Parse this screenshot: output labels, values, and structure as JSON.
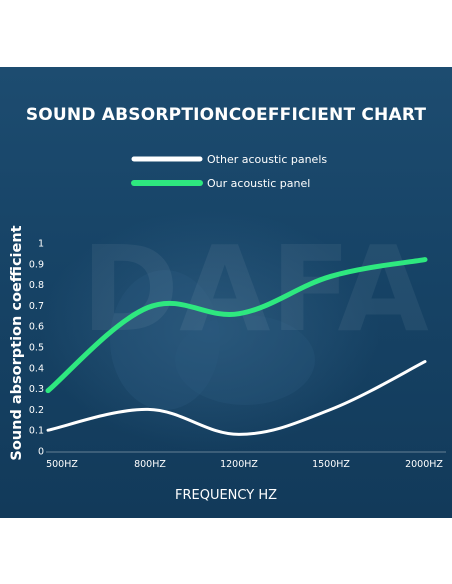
{
  "chart_data": {
    "type": "line",
    "title": "SOUND ABSORPTIONCOEFFICIENT CHART",
    "xlabel": "FREQUENCY HZ",
    "ylabel": "Sound absorption coefficient",
    "categories": [
      "500HZ",
      "800HZ",
      "1200HZ",
      "1500HZ",
      "2000HZ"
    ],
    "yticks": [
      "0",
      "0.1",
      "0.2",
      "0.3",
      "0.4",
      "0.5",
      "0.6",
      "0.7",
      "0.8",
      "0.9",
      "1"
    ],
    "ylim": [
      0,
      1
    ],
    "grid": false,
    "legend_position": "top-center",
    "series": [
      {
        "name": "Other acoustic panels",
        "color": "#ffffff",
        "values": [
          0.1,
          0.2,
          0.08,
          0.2,
          0.43
        ]
      },
      {
        "name": "Our acoustic panel",
        "color": "#2ee87f",
        "values": [
          0.29,
          0.69,
          0.66,
          0.84,
          0.92
        ]
      }
    ],
    "watermark": "DAFA"
  },
  "colors": {
    "panel_background": "#174467",
    "text": "#ffffff",
    "other_line": "#ffffff",
    "our_line": "#2ee87f"
  }
}
